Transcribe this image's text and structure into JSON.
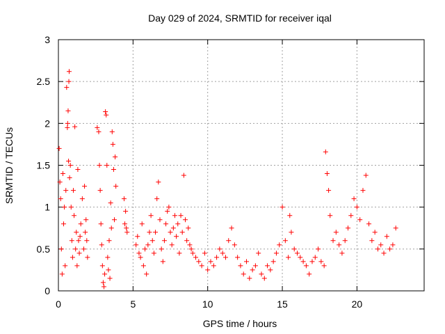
{
  "chart_data": {
    "type": "scatter",
    "title": "Day 029 of 2024, SRMTID for receiver iqal",
    "xlabel": "GPS time / hours",
    "ylabel": "SRMTID / TECUs",
    "xlim": [
      0,
      24.5
    ],
    "ylim": [
      0,
      3
    ],
    "x_ticks": [
      0,
      5,
      10,
      15,
      20
    ],
    "x_tick_labels": [
      "0",
      "5",
      "10",
      "15",
      "20"
    ],
    "y_ticks": [
      0,
      0.5,
      1,
      1.5,
      2,
      2.5,
      3
    ],
    "y_tick_labels": [
      "0",
      "0.5",
      "1",
      "1.5",
      "2",
      "2.5",
      "3"
    ],
    "grid": true,
    "marker": "+",
    "color": "#ff0000",
    "series": [
      {
        "name": "SRMTID",
        "points": [
          [
            0.05,
            1.7
          ],
          [
            0.1,
            1.3
          ],
          [
            0.15,
            1.1
          ],
          [
            0.2,
            0.5
          ],
          [
            0.25,
            0.2
          ],
          [
            0.3,
            1.4
          ],
          [
            0.35,
            0.8
          ],
          [
            0.4,
            1.0
          ],
          [
            0.45,
            0.3
          ],
          [
            0.5,
            1.2
          ],
          [
            0.55,
            2.43
          ],
          [
            0.6,
            1.95
          ],
          [
            0.62,
            2.0
          ],
          [
            0.65,
            2.15
          ],
          [
            0.68,
            1.55
          ],
          [
            0.7,
            2.5
          ],
          [
            0.72,
            2.62
          ],
          [
            0.75,
            1.35
          ],
          [
            0.8,
            1.5
          ],
          [
            0.85,
            1.0
          ],
          [
            0.9,
            0.6
          ],
          [
            0.95,
            0.4
          ],
          [
            1.0,
            1.2
          ],
          [
            1.05,
            0.9
          ],
          [
            1.1,
            1.96
          ],
          [
            1.15,
            0.5
          ],
          [
            1.2,
            0.7
          ],
          [
            1.25,
            0.3
          ],
          [
            1.3,
            1.45
          ],
          [
            1.35,
            0.6
          ],
          [
            1.4,
            0.45
          ],
          [
            1.45,
            0.65
          ],
          [
            1.5,
            0.8
          ],
          [
            1.6,
            1.1
          ],
          [
            1.7,
            0.5
          ],
          [
            1.75,
            1.25
          ],
          [
            1.8,
            0.7
          ],
          [
            1.85,
            0.85
          ],
          [
            1.9,
            0.6
          ],
          [
            1.95,
            0.4
          ],
          [
            2.6,
            1.95
          ],
          [
            2.7,
            1.9
          ],
          [
            2.75,
            1.5
          ],
          [
            2.8,
            1.2
          ],
          [
            2.85,
            0.8
          ],
          [
            2.9,
            0.55
          ],
          [
            2.95,
            0.3
          ],
          [
            3.0,
            0.1
          ],
          [
            3.05,
            0.05
          ],
          [
            3.1,
            0.2
          ],
          [
            3.15,
            2.14
          ],
          [
            3.2,
            2.1
          ],
          [
            3.25,
            1.5
          ],
          [
            3.3,
            0.4
          ],
          [
            3.35,
            0.25
          ],
          [
            3.4,
            0.6
          ],
          [
            3.45,
            0.15
          ],
          [
            3.5,
            1.05
          ],
          [
            3.55,
            0.75
          ],
          [
            3.6,
            1.9
          ],
          [
            3.65,
            1.75
          ],
          [
            3.7,
            1.45
          ],
          [
            3.75,
            0.85
          ],
          [
            3.8,
            1.6
          ],
          [
            3.85,
            1.25
          ],
          [
            4.4,
            1.1
          ],
          [
            4.45,
            0.8
          ],
          [
            4.5,
            0.95
          ],
          [
            4.55,
            0.75
          ],
          [
            4.6,
            0.7
          ],
          [
            5.2,
            0.55
          ],
          [
            5.3,
            0.65
          ],
          [
            5.4,
            0.45
          ],
          [
            5.5,
            0.4
          ],
          [
            5.6,
            0.8
          ],
          [
            5.7,
            0.3
          ],
          [
            5.8,
            0.5
          ],
          [
            5.9,
            0.2
          ],
          [
            6.0,
            0.55
          ],
          [
            6.1,
            0.7
          ],
          [
            6.2,
            0.9
          ],
          [
            6.3,
            0.6
          ],
          [
            6.4,
            0.45
          ],
          [
            6.5,
            0.7
          ],
          [
            6.6,
            1.1
          ],
          [
            6.7,
            1.3
          ],
          [
            6.8,
            0.85
          ],
          [
            6.9,
            0.5
          ],
          [
            7.0,
            0.35
          ],
          [
            7.1,
            0.6
          ],
          [
            7.2,
            0.8
          ],
          [
            7.3,
            0.95
          ],
          [
            7.4,
            1.0
          ],
          [
            7.5,
            0.7
          ],
          [
            7.6,
            0.55
          ],
          [
            7.7,
            0.75
          ],
          [
            7.8,
            0.9
          ],
          [
            7.9,
            0.65
          ],
          [
            8.0,
            0.8
          ],
          [
            8.1,
            0.45
          ],
          [
            8.2,
            0.9
          ],
          [
            8.3,
            0.7
          ],
          [
            8.4,
            1.38
          ],
          [
            8.5,
            0.85
          ],
          [
            8.6,
            0.6
          ],
          [
            8.7,
            0.75
          ],
          [
            8.8,
            0.55
          ],
          [
            8.9,
            0.5
          ],
          [
            9.0,
            0.45
          ],
          [
            9.2,
            0.4
          ],
          [
            9.4,
            0.35
          ],
          [
            9.6,
            0.3
          ],
          [
            9.8,
            0.45
          ],
          [
            10.0,
            0.25
          ],
          [
            10.2,
            0.35
          ],
          [
            10.4,
            0.3
          ],
          [
            10.6,
            0.4
          ],
          [
            10.8,
            0.5
          ],
          [
            11.0,
            0.45
          ],
          [
            11.2,
            0.4
          ],
          [
            11.4,
            0.6
          ],
          [
            11.6,
            0.75
          ],
          [
            11.8,
            0.55
          ],
          [
            12.0,
            0.4
          ],
          [
            12.2,
            0.3
          ],
          [
            12.4,
            0.2
          ],
          [
            12.6,
            0.35
          ],
          [
            12.8,
            0.15
          ],
          [
            13.0,
            0.25
          ],
          [
            13.2,
            0.3
          ],
          [
            13.4,
            0.45
          ],
          [
            13.6,
            0.2
          ],
          [
            13.8,
            0.15
          ],
          [
            14.0,
            0.3
          ],
          [
            14.2,
            0.25
          ],
          [
            14.4,
            0.35
          ],
          [
            14.6,
            0.45
          ],
          [
            14.8,
            0.55
          ],
          [
            15.0,
            1.0
          ],
          [
            15.2,
            0.6
          ],
          [
            15.4,
            0.4
          ],
          [
            15.5,
            0.9
          ],
          [
            15.6,
            0.7
          ],
          [
            15.8,
            0.5
          ],
          [
            16.0,
            0.45
          ],
          [
            16.2,
            0.4
          ],
          [
            16.4,
            0.35
          ],
          [
            16.6,
            0.3
          ],
          [
            16.8,
            0.2
          ],
          [
            17.0,
            0.35
          ],
          [
            17.2,
            0.4
          ],
          [
            17.4,
            0.5
          ],
          [
            17.6,
            0.35
          ],
          [
            17.8,
            0.3
          ],
          [
            17.9,
            1.66
          ],
          [
            18.0,
            1.4
          ],
          [
            18.1,
            1.2
          ],
          [
            18.2,
            0.9
          ],
          [
            18.4,
            0.6
          ],
          [
            18.6,
            0.7
          ],
          [
            18.8,
            0.55
          ],
          [
            19.0,
            0.45
          ],
          [
            19.2,
            0.6
          ],
          [
            19.4,
            0.75
          ],
          [
            19.6,
            0.9
          ],
          [
            19.8,
            1.1
          ],
          [
            20.0,
            1.0
          ],
          [
            20.2,
            0.85
          ],
          [
            20.4,
            1.2
          ],
          [
            20.6,
            1.38
          ],
          [
            20.8,
            0.8
          ],
          [
            21.0,
            0.6
          ],
          [
            21.2,
            0.7
          ],
          [
            21.4,
            0.5
          ],
          [
            21.6,
            0.55
          ],
          [
            21.8,
            0.45
          ],
          [
            22.0,
            0.65
          ],
          [
            22.2,
            0.5
          ],
          [
            22.4,
            0.55
          ],
          [
            22.6,
            0.75
          ]
        ]
      }
    ]
  }
}
